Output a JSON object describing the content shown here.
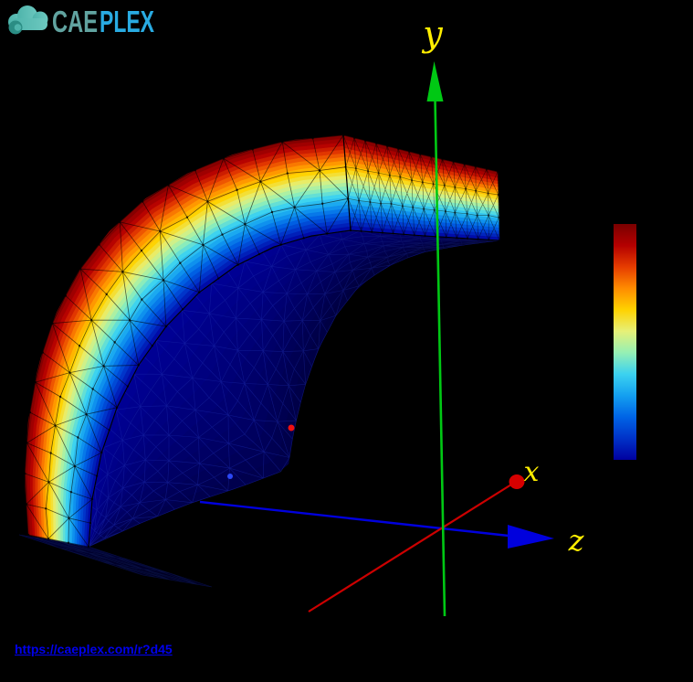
{
  "brand": {
    "name_prefix": "CAE",
    "name_suffix": "PLEX",
    "prefix_color": "#61a3a0",
    "suffix_color": "#29abe2",
    "cloud_color": "#4eb4ab",
    "cloud_light": "#6cc8bf",
    "cloud_dark": "#2b8d84"
  },
  "share_link": {
    "text": "https://caeplex.com/r?d45",
    "color": "#0000ee"
  },
  "axes": {
    "x_label": "x",
    "y_label": "y",
    "z_label": "z",
    "x_color": "#cc0000",
    "y_color": "#00c814",
    "z_color": "#0000dd",
    "label_color": "#ffee00"
  },
  "colormap": [
    "#7a0000",
    "#b40000",
    "#e63c00",
    "#ff8c00",
    "#ffd200",
    "#e6f078",
    "#96f0b4",
    "#3cd2f0",
    "#14a0f0",
    "#0064e6",
    "#0032c8",
    "#0000a0"
  ],
  "dark_surface_colors": [
    "#000096",
    "#000072",
    "#00004a"
  ],
  "bottom_face_colors": [
    "#000034",
    "#000020"
  ],
  "point_markers": [
    {
      "name": "red-point",
      "color": "#f01010"
    },
    {
      "name": "blue-point",
      "color": "#2d4cff"
    }
  ],
  "background": "#000000"
}
